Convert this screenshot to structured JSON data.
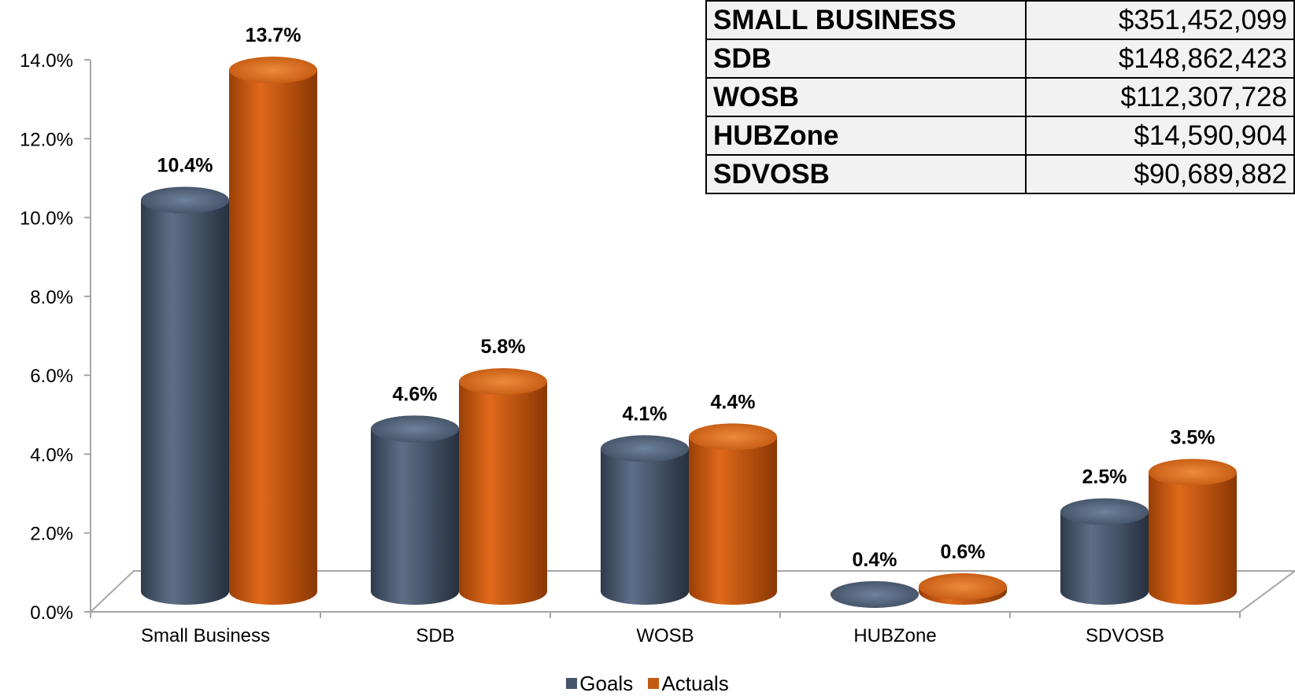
{
  "chart_data": {
    "type": "bar",
    "categories": [
      "Small Business",
      "SDB",
      "WOSB",
      "HUBZone",
      "SDVOSB"
    ],
    "series": [
      {
        "name": "Goals",
        "values": [
          10.4,
          4.6,
          4.1,
          0.4,
          2.5
        ],
        "color": "#44546a",
        "labels": [
          "10.4%",
          "4.6%",
          "4.1%",
          "0.4%",
          "2.5%"
        ]
      },
      {
        "name": "Actuals",
        "values": [
          13.7,
          5.8,
          4.4,
          0.6,
          3.5
        ],
        "color": "#c55a11",
        "labels": [
          "13.7%",
          "5.8%",
          "4.4%",
          "0.6%",
          "3.5%"
        ]
      }
    ],
    "ylim": [
      0,
      14
    ],
    "yticks": [
      "0.0%",
      "2.0%",
      "4.0%",
      "6.0%",
      "8.0%",
      "10.0%",
      "12.0%",
      "14.0%"
    ],
    "ytick_values": [
      0,
      2,
      4,
      6,
      8,
      10,
      12,
      14
    ],
    "grid": false,
    "style": "3d-cylinder",
    "legend_position": "bottom"
  },
  "table": {
    "rows": [
      {
        "category": "SMALL BUSINESS",
        "amount": "$351,452,099"
      },
      {
        "category": "SDB",
        "amount": "$148,862,423"
      },
      {
        "category": "WOSB",
        "amount": "$112,307,728"
      },
      {
        "category": "HUBZone",
        "amount": "$14,590,904"
      },
      {
        "category": "SDVOSB",
        "amount": "$90,689,882"
      }
    ]
  },
  "legend": {
    "goals": "Goals",
    "actuals": "Actuals"
  }
}
